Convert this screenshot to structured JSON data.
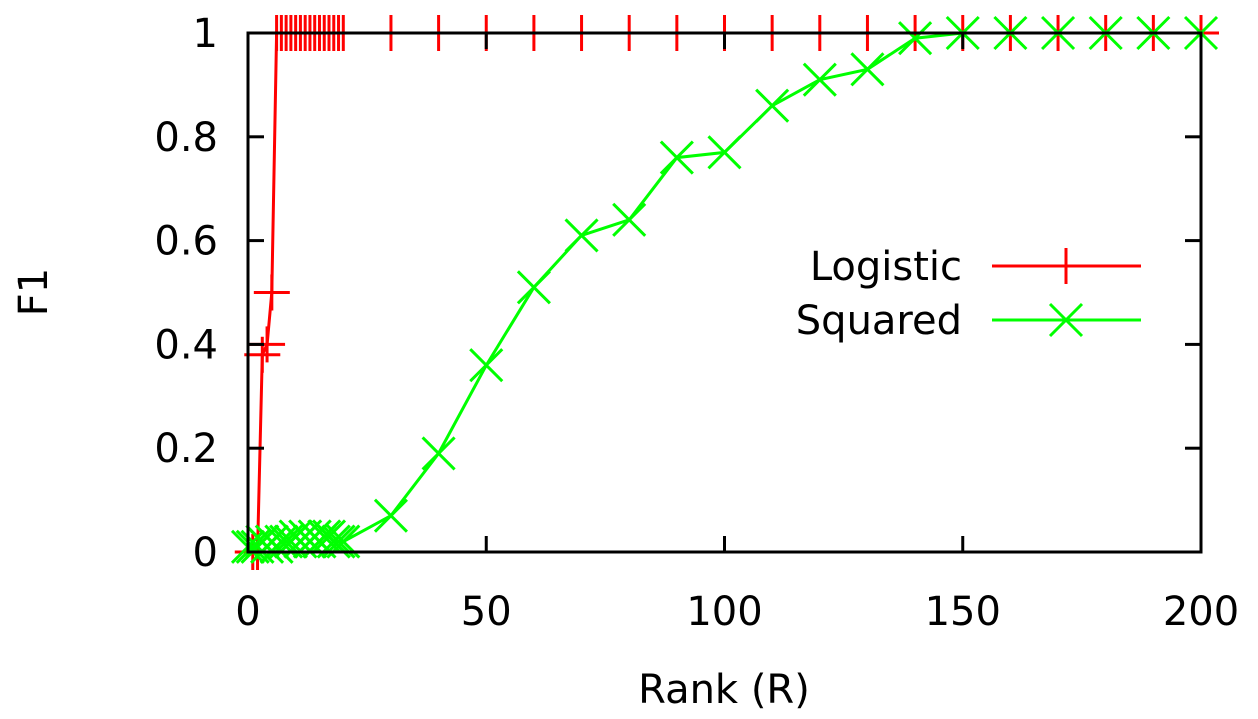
{
  "chart_data": {
    "type": "line",
    "xlabel": "Rank (R)",
    "ylabel": "F1",
    "xlim": [
      0,
      200
    ],
    "ylim": [
      0,
      1
    ],
    "xticks": [
      "0",
      "50",
      "100",
      "150",
      "200"
    ],
    "yticks": [
      "0",
      "0.2",
      "0.4",
      "0.6",
      "0.8",
      "1"
    ],
    "xtick_values": [
      0,
      50,
      100,
      150,
      200
    ],
    "ytick_values": [
      0,
      0.2,
      0.4,
      0.6,
      0.8,
      1
    ],
    "grid": false,
    "legend_position": "right",
    "series": [
      {
        "name": "Logistic",
        "color": "#ff0000",
        "marker": "plus",
        "x": [
          1,
          2,
          3,
          4,
          5,
          6,
          7,
          8,
          9,
          10,
          11,
          12,
          13,
          14,
          15,
          16,
          17,
          18,
          19,
          20,
          30,
          40,
          50,
          60,
          70,
          80,
          90,
          100,
          110,
          120,
          130,
          140,
          150,
          160,
          170,
          180,
          190,
          200
        ],
        "y": [
          0,
          0,
          0.38,
          0.4,
          0.5,
          1,
          1,
          1,
          1,
          1,
          1,
          1,
          1,
          1,
          1,
          1,
          1,
          1,
          1,
          1,
          1,
          1,
          1,
          1,
          1,
          1,
          1,
          1,
          1,
          1,
          1,
          1,
          1,
          1,
          1,
          1,
          1,
          1
        ]
      },
      {
        "name": "Squared",
        "color": "#00ff00",
        "marker": "cross",
        "x": [
          0,
          1,
          2,
          3,
          4,
          5,
          6,
          7,
          8,
          9,
          10,
          11,
          12,
          13,
          14,
          15,
          16,
          17,
          18,
          19,
          20,
          30,
          40,
          50,
          60,
          70,
          80,
          90,
          100,
          110,
          120,
          130,
          140,
          150,
          160,
          170,
          180,
          190,
          200
        ],
        "y": [
          0.01,
          0.01,
          0.01,
          0.02,
          0.01,
          0.02,
          0.01,
          0.02,
          0.02,
          0.02,
          0.03,
          0.02,
          0.03,
          0.02,
          0.03,
          0.02,
          0.03,
          0.03,
          0.02,
          0.02,
          0.02,
          0.07,
          0.19,
          0.36,
          0.51,
          0.61,
          0.64,
          0.76,
          0.77,
          0.86,
          0.91,
          0.93,
          0.99,
          1,
          1,
          1,
          1,
          1,
          1
        ]
      }
    ]
  }
}
